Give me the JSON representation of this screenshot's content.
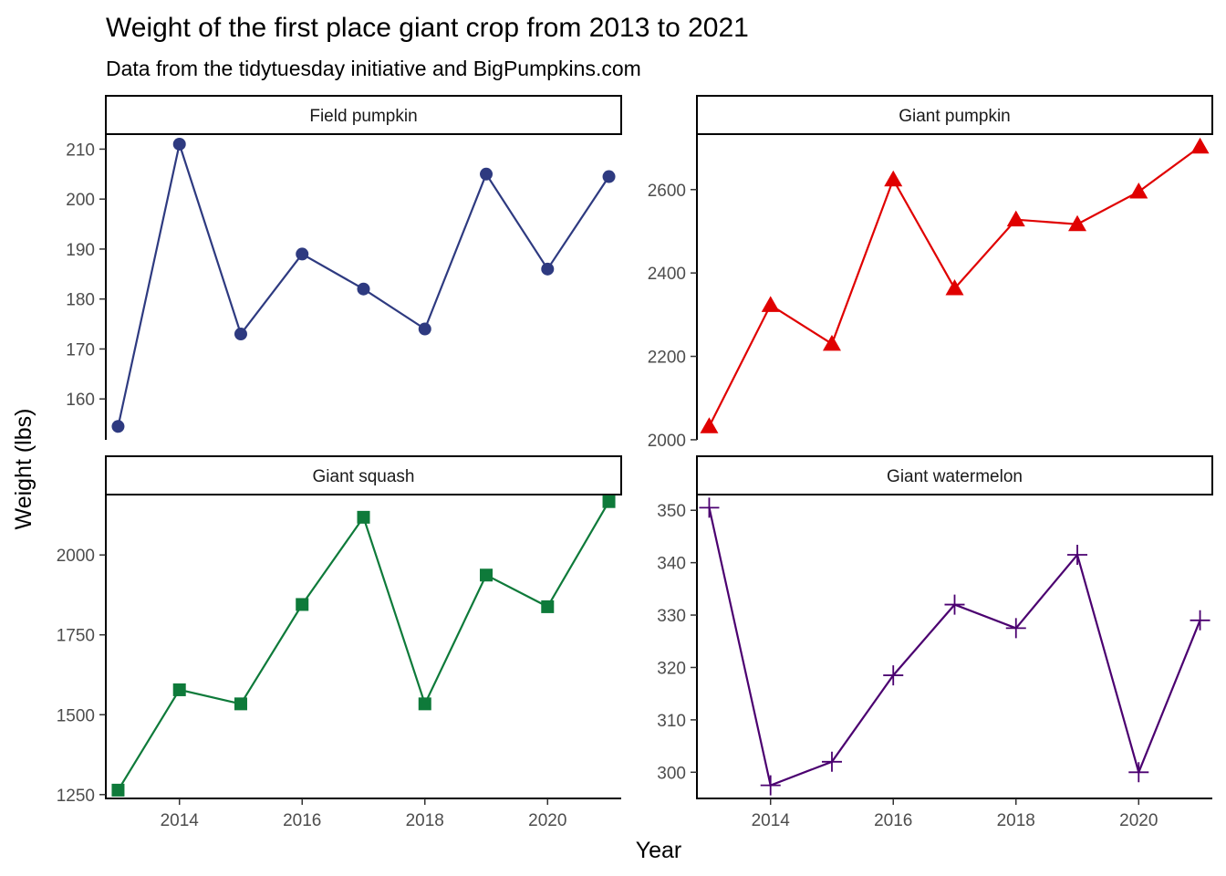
{
  "title": "Weight of the first place  giant crop from 2013 to 2021",
  "subtitle": "Data from the tidytuesday initiative and BigPumpkins.com",
  "xlabel": "Year",
  "ylabel": "Weight (lbs)",
  "chart_data": [
    {
      "type": "line",
      "facet": "Field pumpkin",
      "color": "#2E3A80",
      "marker": "circle",
      "x": [
        2013,
        2014,
        2015,
        2016,
        2017,
        2018,
        2019,
        2020,
        2021
      ],
      "values": [
        154.5,
        211,
        173,
        189,
        182,
        174,
        205,
        186,
        204.5
      ],
      "xlim": [
        2012.8,
        2021.2
      ],
      "ylim": [
        152,
        213
      ],
      "xticks": [
        "2014",
        "2016",
        "2018",
        "2020"
      ],
      "yticks": [
        "160",
        "170",
        "180",
        "190",
        "200",
        "210"
      ],
      "grid": false
    },
    {
      "type": "line",
      "facet": "Giant pumpkin",
      "color": "#E00000",
      "marker": "triangle",
      "x": [
        2013,
        2014,
        2015,
        2016,
        2017,
        2018,
        2019,
        2020,
        2021
      ],
      "values": [
        2032,
        2323,
        2230,
        2624,
        2363,
        2528,
        2517,
        2595,
        2703
      ],
      "xlim": [
        2012.8,
        2021.2
      ],
      "ylim": [
        2002,
        2733
      ],
      "xticks": [
        "2014",
        "2016",
        "2018",
        "2020"
      ],
      "yticks": [
        "2000",
        "2200",
        "2400",
        "2600"
      ],
      "grid": false
    },
    {
      "type": "line",
      "facet": "Giant squash",
      "color": "#0E7A3A",
      "marker": "square",
      "x": [
        2013,
        2014,
        2015,
        2016,
        2017,
        2018,
        2019,
        2020,
        2021
      ],
      "values": [
        1264,
        1578,
        1534,
        1845,
        2118,
        1534,
        1937,
        1838,
        2167
      ],
      "xlim": [
        2012.8,
        2021.2
      ],
      "ylim": [
        1238,
        2189
      ],
      "xticks": [
        "2014",
        "2016",
        "2018",
        "2020"
      ],
      "yticks": [
        "1250",
        "1500",
        "1750",
        "2000"
      ],
      "grid": false
    },
    {
      "type": "line",
      "facet": "Giant watermelon",
      "color": "#4B0070",
      "marker": "plus",
      "x": [
        2013,
        2014,
        2015,
        2016,
        2017,
        2018,
        2019,
        2020,
        2021
      ],
      "values": [
        350.5,
        297.5,
        302,
        318.5,
        332,
        327.5,
        341.5,
        300,
        329
      ],
      "xlim": [
        2012.8,
        2021.2
      ],
      "ylim": [
        295,
        353
      ],
      "xticks": [
        "2014",
        "2016",
        "2018",
        "2020"
      ],
      "yticks": [
        "300",
        "310",
        "320",
        "330",
        "340",
        "350"
      ],
      "grid": false
    }
  ]
}
